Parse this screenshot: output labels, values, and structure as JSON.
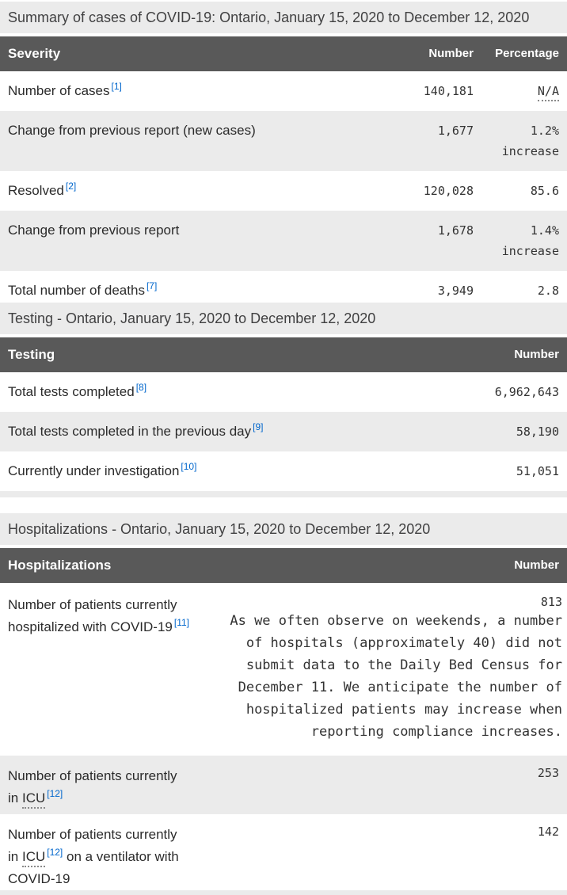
{
  "colors": {
    "header_bg": "#595959",
    "header_text": "#ffffff",
    "alt_row_bg": "#ebebeb",
    "caption_bg": "#ebebeb",
    "link_blue": "#0066cc",
    "body_text": "#2b2b2b"
  },
  "tables": [
    {
      "caption": "Summary of cases of COVID-19: Ontario, January 15, 2020 to December 12, 2020",
      "columns": {
        "c1": "Severity",
        "c2": "Number",
        "c3": "Percentage"
      },
      "rows": [
        {
          "label": "Number of cases",
          "ref": "[1]",
          "number": "140,181",
          "pct": "N/A"
        },
        {
          "label": "Change from previous report (new cases)",
          "number": "1,677",
          "pct": "1.2%",
          "pct_note": "increase"
        },
        {
          "label": "Resolved",
          "ref": "[2]",
          "number": "120,028",
          "pct": "85.6"
        },
        {
          "label": "Change from previous report",
          "number": "1,678",
          "pct": "1.4%",
          "pct_note": "increase"
        },
        {
          "label": "Total number of deaths",
          "ref": "[7]",
          "number": "3,949",
          "pct": "2.8"
        }
      ]
    },
    {
      "caption": "Testing - Ontario, January 15, 2020 to December 12, 2020",
      "columns": {
        "c1": "Testing",
        "c2": "Number"
      },
      "rows": [
        {
          "label": "Total tests completed",
          "ref": "[8]",
          "number": "6,962,643"
        },
        {
          "label": "Total tests completed in the previous day",
          "ref": "[9]",
          "number": "58,190"
        },
        {
          "label": "Currently under investigation",
          "ref": "[10]",
          "number": "51,051"
        }
      ]
    },
    {
      "caption": "Hospitalizations - Ontario, January 15, 2020 to December 12, 2020",
      "columns": {
        "c1": "Hospitalizations",
        "c2": "Number"
      },
      "rows": [
        {
          "label": "Number of patients currently hospitalized with COVID-19",
          "ref": "[11]",
          "number": "813",
          "note": "As we often observe on weekends, a number of hospitals (approximately 40) did not submit data to the Daily Bed Census for December 11. We anticipate the number of hospitalized patients may increase when reporting compliance increases."
        },
        {
          "label_pre": "Number of patients currently in",
          "abbr": "ICU",
          "ref": "[12]",
          "number": "253"
        },
        {
          "label_pre": "Number of patients currently in",
          "abbr": "ICU",
          "ref": "[12]",
          "label_post": "on a ventilator with COVID-19",
          "number": "142"
        }
      ]
    }
  ]
}
